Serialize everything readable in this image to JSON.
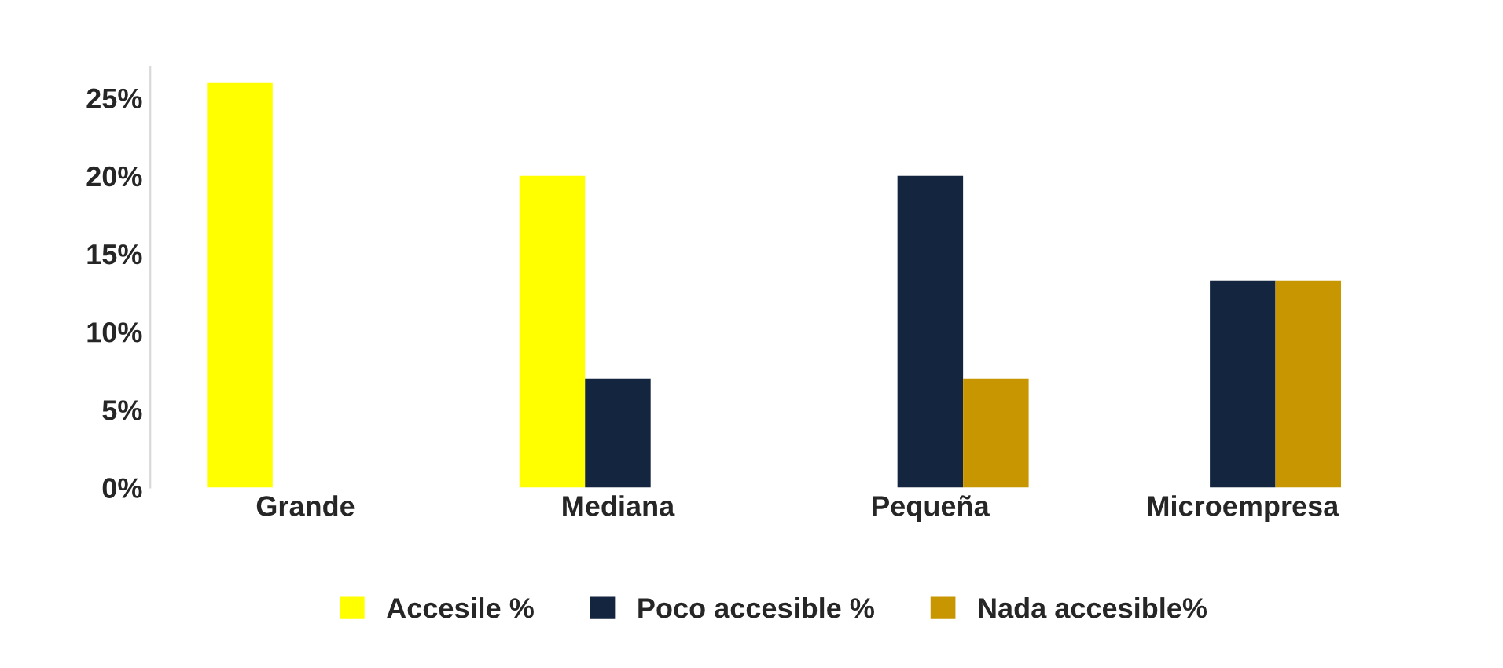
{
  "chart_data": {
    "type": "bar",
    "categories": [
      "Grande",
      "Mediana",
      "Pequeña",
      "Microempresa"
    ],
    "series": [
      {
        "name": "Accesile %",
        "color": "#ffff00",
        "values": [
          26,
          20,
          0,
          0
        ]
      },
      {
        "name": "Poco accesible %",
        "color": "#14253f",
        "values": [
          0,
          7,
          20,
          13.3
        ]
      },
      {
        "name": "Nada accesible%",
        "color": "#c89600",
        "values": [
          0,
          0,
          7,
          13.3
        ]
      }
    ],
    "ylim": [
      0,
      27
    ],
    "yticks": [
      {
        "value": 0,
        "label": "0%"
      },
      {
        "value": 5,
        "label": "5%"
      },
      {
        "value": 10,
        "label": "10%"
      },
      {
        "value": 15,
        "label": "15%"
      },
      {
        "value": 20,
        "label": "20%"
      },
      {
        "value": 25,
        "label": "25%"
      }
    ],
    "grid": false,
    "legend": "bottom"
  }
}
